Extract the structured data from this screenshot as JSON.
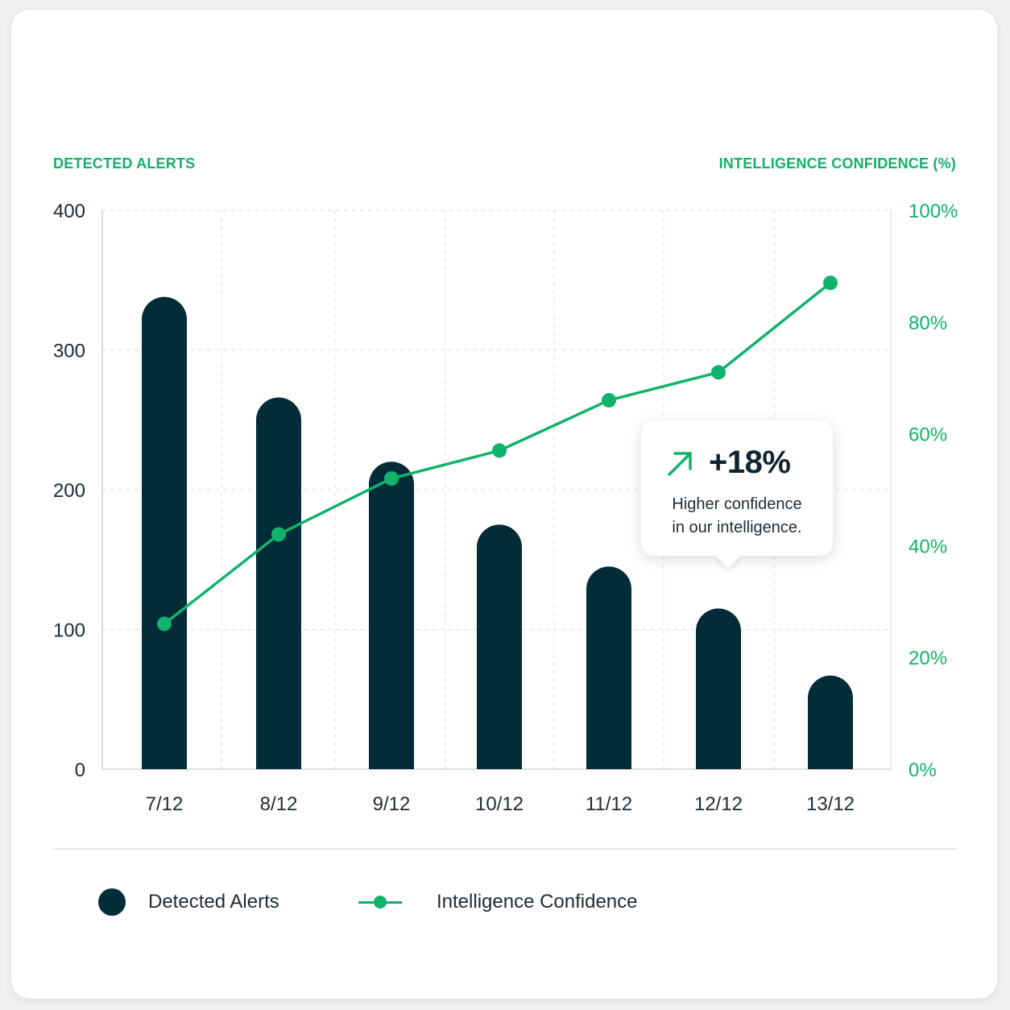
{
  "chart_data": {
    "type": "bar",
    "categories": [
      "7/12",
      "8/12",
      "9/12",
      "10/12",
      "11/12",
      "12/12",
      "13/12"
    ],
    "series": [
      {
        "name": "Detected Alerts",
        "type": "bar",
        "axis": "left",
        "values": [
          338,
          266,
          220,
          175,
          145,
          115,
          67
        ]
      },
      {
        "name": "Intelligence Confidence",
        "type": "line",
        "axis": "right",
        "values": [
          26,
          42,
          52,
          57,
          66,
          71,
          87
        ]
      }
    ],
    "left_axis": {
      "title": "DETECTED ALERTS",
      "range": [
        0,
        400
      ],
      "ticks": [
        0,
        100,
        200,
        300,
        400
      ],
      "tick_labels": [
        "0",
        "100",
        "200",
        "300",
        "400"
      ]
    },
    "right_axis": {
      "title": "INTELLIGENCE CONFIDENCE (%)",
      "range": [
        0,
        100
      ],
      "ticks": [
        0,
        20,
        40,
        60,
        80,
        100
      ],
      "tick_labels": [
        "0%",
        "20%",
        "40%",
        "60%",
        "80%",
        "100%"
      ]
    },
    "grid": true,
    "legend_placement": "bottom-left",
    "colors": {
      "bars": "#032c39",
      "line": "#11b26b",
      "grid": "#dfe2e5",
      "axis_text": "#1d2b33",
      "accent_text": "#11b26b"
    },
    "annotation": {
      "value": "+18%",
      "text_line1": "Higher confidence",
      "text_line2": "in our intelligence.",
      "icon": "arrow-up-right-icon",
      "anchor_category": "12/12"
    }
  },
  "legend": {
    "alerts_label": "Detected Alerts",
    "confidence_label": "Intelligence Confidence"
  }
}
